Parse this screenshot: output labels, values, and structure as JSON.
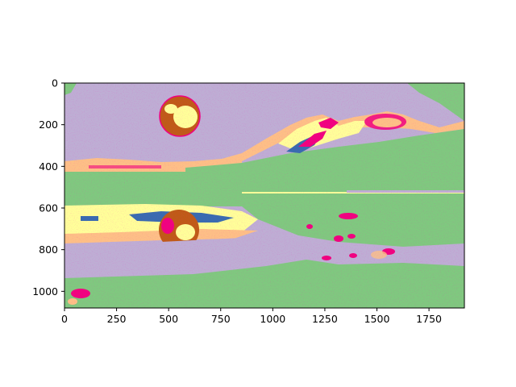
{
  "chart_data": {
    "type": "heatmap",
    "title": "",
    "xlabel": "",
    "ylabel": "",
    "xlim": [
      0,
      1920
    ],
    "ylim": [
      1080,
      0
    ],
    "y_axis_inverted": true,
    "grid": false,
    "x_ticks": [
      0,
      250,
      500,
      750,
      1000,
      1250,
      1500,
      1750
    ],
    "y_ticks": [
      0,
      200,
      400,
      600,
      800,
      1000
    ],
    "x_tick_labels": [
      "0",
      "250",
      "500",
      "750",
      "1000",
      "1250",
      "1500",
      "1750"
    ],
    "y_tick_labels": [
      "0",
      "200",
      "400",
      "600",
      "800",
      "1000"
    ],
    "colormap": "Accent",
    "palette": {
      "lavender": "#beaed4",
      "green": "#7fc97f",
      "peach": "#fdc086",
      "yellow": "#ffff99",
      "blue": "#386cb0",
      "magenta": "#f0027f",
      "brown": "#bf5b17",
      "gray": "#666666"
    },
    "description": "Quantized image: sky with moon, mountains, lake with reflection"
  }
}
